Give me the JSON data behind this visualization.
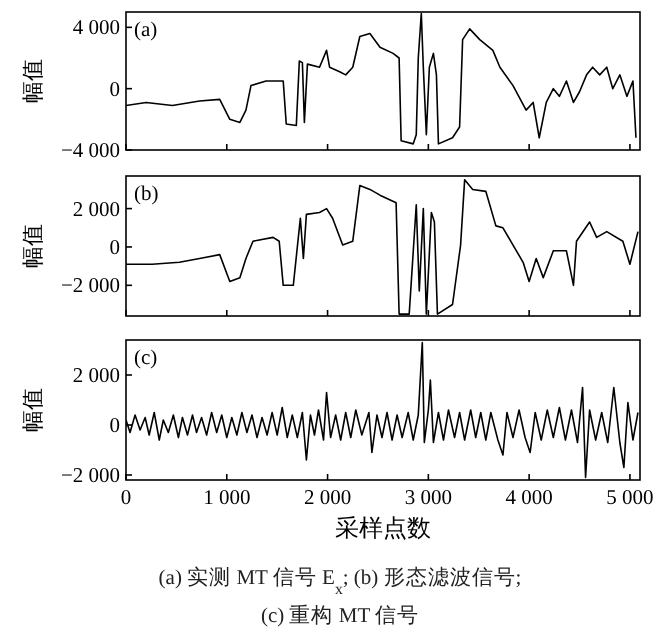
{
  "chart_data": [
    {
      "type": "line",
      "ylabel": "幅值",
      "annotations": [
        "(a)"
      ],
      "tick_labels": "y",
      "color": "#000000",
      "xlim": [
        0,
        5100
      ],
      "ylim": [
        -4000,
        5000
      ],
      "xticks": [
        {
          "value": 0,
          "label": null
        },
        {
          "value": 1000,
          "label": null
        },
        {
          "value": 2000,
          "label": null
        },
        {
          "value": 3000,
          "label": null
        },
        {
          "value": 4000,
          "label": null
        },
        {
          "value": 5000,
          "label": null
        }
      ],
      "yticks": [
        {
          "value": -4000,
          "label": "−4 000"
        },
        {
          "value": 0,
          "label": "0"
        },
        {
          "value": 4000,
          "label": "4 000"
        }
      ],
      "x": [
        0,
        200,
        460,
        730,
        930,
        1030,
        1130,
        1190,
        1240,
        1390,
        1520,
        1560,
        1590,
        1690,
        1720,
        1750,
        1770,
        1800,
        1920,
        1990,
        2020,
        2120,
        2180,
        2250,
        2320,
        2420,
        2520,
        2650,
        2710,
        2730,
        2850,
        2880,
        2900,
        2930,
        2950,
        2980,
        3010,
        3050,
        3080,
        3100,
        3240,
        3310,
        3340,
        3410,
        3510,
        3640,
        3710,
        3840,
        3970,
        4040,
        4100,
        4170,
        4240,
        4300,
        4370,
        4440,
        4500,
        4570,
        4630,
        4700,
        4770,
        4830,
        4900,
        4970,
        5030,
        5060
      ],
      "values": [
        -1100,
        -900,
        -1100,
        -800,
        -700,
        -2000,
        -2200,
        -1400,
        200,
        500,
        500,
        500,
        -2300,
        -2400,
        1800,
        1700,
        -2200,
        1600,
        1400,
        2500,
        1400,
        1100,
        900,
        1400,
        3400,
        3600,
        2700,
        2300,
        2000,
        -3400,
        -3600,
        -3000,
        2000,
        4900,
        1400,
        -3000,
        1400,
        2300,
        900,
        -3600,
        -3200,
        -2500,
        3200,
        3900,
        3200,
        2500,
        1400,
        200,
        -1400,
        -900,
        -3200,
        -900,
        0,
        -500,
        500,
        -900,
        -200,
        900,
        1400,
        900,
        1400,
        0,
        900,
        -500,
        500,
        -3200
      ]
    },
    {
      "type": "line",
      "ylabel": "幅值",
      "annotations": [
        "(b)"
      ],
      "tick_labels": "y",
      "color": "#000000",
      "xlim": [
        0,
        5100
      ],
      "ylim": [
        -3600,
        3700
      ],
      "xticks": [
        {
          "value": 0,
          "label": null
        },
        {
          "value": 1000,
          "label": null
        },
        {
          "value": 2000,
          "label": null
        },
        {
          "value": 3000,
          "label": null
        },
        {
          "value": 4000,
          "label": null
        },
        {
          "value": 5000,
          "label": null
        }
      ],
      "yticks": [
        {
          "value": -2000,
          "label": "−2 000"
        },
        {
          "value": 0,
          "label": "0"
        },
        {
          "value": 2000,
          "label": "2 000"
        }
      ],
      "x": [
        0,
        260,
        530,
        730,
        930,
        1030,
        1130,
        1190,
        1260,
        1460,
        1520,
        1560,
        1660,
        1730,
        1760,
        1790,
        1920,
        1990,
        2050,
        2150,
        2250,
        2320,
        2420,
        2520,
        2680,
        2710,
        2810,
        2880,
        2910,
        2950,
        2980,
        3030,
        3060,
        3090,
        3240,
        3320,
        3360,
        3440,
        3570,
        3670,
        3740,
        3840,
        3940,
        4000,
        4070,
        4140,
        4240,
        4370,
        4440,
        4470,
        4600,
        4670,
        4770,
        4930,
        5000,
        5080
      ],
      "values": [
        -900,
        -900,
        -800,
        -600,
        -400,
        -1800,
        -1600,
        -600,
        300,
        500,
        300,
        -2000,
        -2000,
        1500,
        -600,
        1700,
        1800,
        2000,
        1500,
        100,
        300,
        3200,
        3000,
        2700,
        2300,
        -3500,
        -3500,
        2200,
        -2300,
        2000,
        -3500,
        1800,
        1300,
        -3500,
        -3000,
        100,
        3500,
        3000,
        2900,
        1100,
        1000,
        100,
        -800,
        -1800,
        -600,
        -1600,
        -200,
        -200,
        -2000,
        300,
        1300,
        500,
        800,
        300,
        -900,
        800
      ]
    },
    {
      "type": "line",
      "ylabel": "幅值",
      "xlabel": "采样点数",
      "annotations": [
        "(c)",
        "(a)  实测 MT 信号 E$_{x}$;  (b)  形态滤波信号;",
        "(c)  重构 MT 信号"
      ],
      "color": "#000000",
      "xlim": [
        0,
        5100
      ],
      "ylim": [
        -2200,
        3400
      ],
      "xticks": [
        {
          "value": 0,
          "label": "0"
        },
        {
          "value": 1000,
          "label": "1 000"
        },
        {
          "value": 2000,
          "label": "2 000"
        },
        {
          "value": 3000,
          "label": "3 000"
        },
        {
          "value": 4000,
          "label": "4 000"
        },
        {
          "value": 5000,
          "label": "5 000"
        }
      ],
      "yticks": [
        {
          "value": -2000,
          "label": "−2 000"
        },
        {
          "value": 0,
          "label": "0"
        },
        {
          "value": 2000,
          "label": "2 000"
        }
      ],
      "x": [
        0,
        40,
        90,
        140,
        190,
        230,
        280,
        330,
        370,
        420,
        470,
        520,
        560,
        610,
        660,
        700,
        750,
        800,
        850,
        900,
        950,
        1000,
        1050,
        1100,
        1150,
        1200,
        1250,
        1300,
        1350,
        1400,
        1450,
        1500,
        1550,
        1600,
        1650,
        1700,
        1750,
        1790,
        1830,
        1870,
        1910,
        1960,
        1990,
        2030,
        2080,
        2130,
        2180,
        2230,
        2280,
        2340,
        2410,
        2440,
        2490,
        2540,
        2590,
        2640,
        2690,
        2740,
        2800,
        2850,
        2900,
        2940,
        2960,
        3000,
        3020,
        3050,
        3100,
        3150,
        3200,
        3260,
        3310,
        3360,
        3420,
        3470,
        3520,
        3570,
        3620,
        3690,
        3740,
        3780,
        3840,
        3900,
        3960,
        4010,
        4060,
        4120,
        4180,
        4240,
        4300,
        4360,
        4420,
        4480,
        4530,
        4560,
        4600,
        4660,
        4720,
        4780,
        4840,
        4900,
        4940,
        4980,
        5030,
        5080
      ],
      "values": [
        200,
        -300,
        400,
        -200,
        300,
        -400,
        500,
        -600,
        200,
        -300,
        400,
        -500,
        300,
        -400,
        400,
        -300,
        300,
        -400,
        500,
        -300,
        400,
        -500,
        300,
        -400,
        500,
        -300,
        400,
        -500,
        300,
        -400,
        500,
        -400,
        700,
        -500,
        400,
        -500,
        500,
        -1400,
        400,
        -400,
        600,
        -600,
        1300,
        -500,
        400,
        -600,
        500,
        -500,
        600,
        -400,
        500,
        -1100,
        400,
        -500,
        500,
        -600,
        400,
        -500,
        500,
        -600,
        400,
        3300,
        -700,
        600,
        1800,
        -700,
        500,
        -600,
        600,
        -500,
        500,
        -600,
        600,
        -500,
        500,
        -600,
        500,
        -600,
        -1200,
        500,
        -500,
        600,
        -500,
        -1100,
        500,
        -600,
        600,
        -500,
        700,
        -600,
        600,
        -700,
        1500,
        -2100,
        600,
        -600,
        500,
        -700,
        1500,
        -700,
        -1700,
        900,
        -600,
        500
      ]
    }
  ]
}
